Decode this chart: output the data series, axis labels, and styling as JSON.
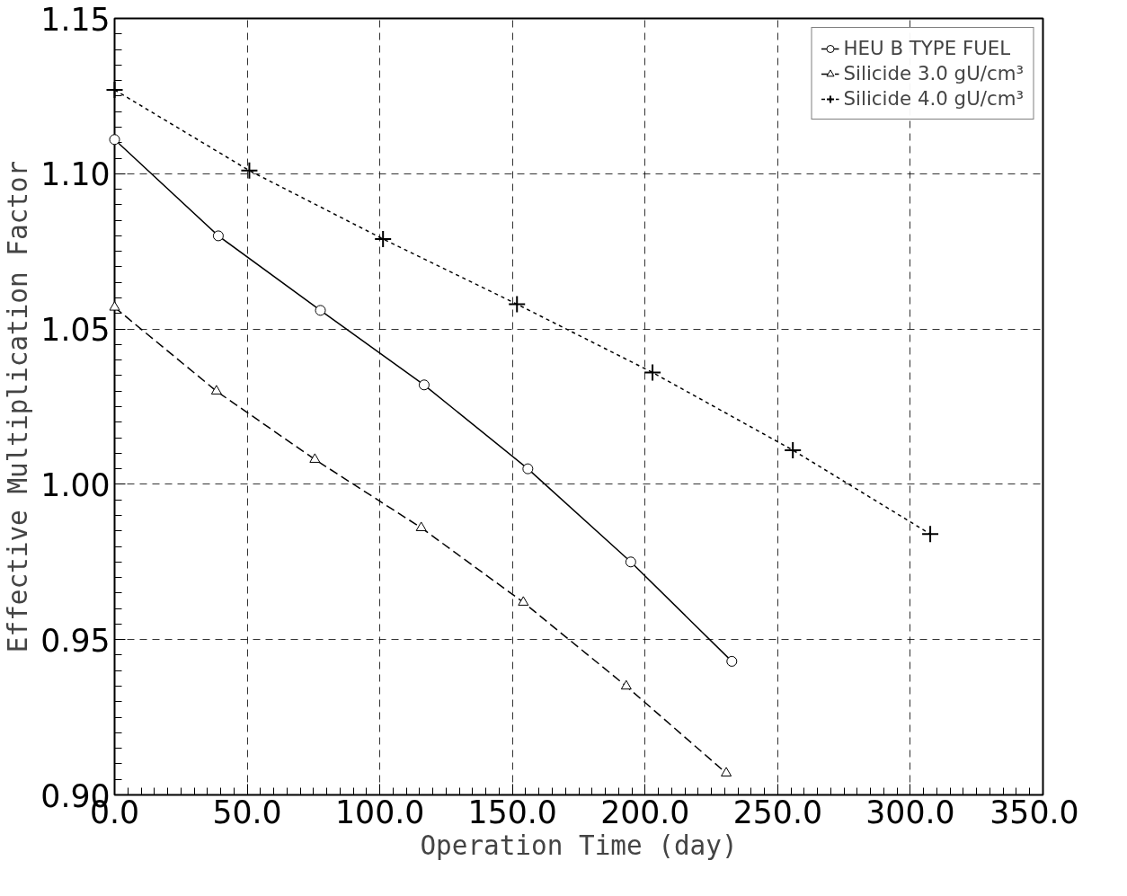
{
  "chart_data": {
    "type": "line",
    "xlabel": "Operation Time (day)",
    "ylabel": "Effective Multiplication Factor",
    "xlim": [
      0,
      350
    ],
    "ylim": [
      0.9,
      1.15
    ],
    "xticks": [
      {
        "value": 0,
        "label": "0.0"
      },
      {
        "value": 50,
        "label": "50.0"
      },
      {
        "value": 100,
        "label": "100.0"
      },
      {
        "value": 150,
        "label": "150.0"
      },
      {
        "value": 200,
        "label": "200.0"
      },
      {
        "value": 250,
        "label": "250.0"
      },
      {
        "value": 300,
        "label": "300.0"
      },
      {
        "value": 350,
        "label": "350.0"
      }
    ],
    "yticks": [
      {
        "value": 0.9,
        "label": "0.90"
      },
      {
        "value": 0.95,
        "label": "0.95"
      },
      {
        "value": 1.0,
        "label": "1.00"
      },
      {
        "value": 1.05,
        "label": "1.05"
      },
      {
        "value": 1.1,
        "label": "1.10"
      },
      {
        "value": 1.15,
        "label": "1.15"
      }
    ],
    "grid": true,
    "legend": "top right",
    "series": [
      {
        "name": "HEU B TYPE FUEL",
        "color": "#000000",
        "marker": "circle",
        "line_style": "solid",
        "x": [
          0,
          39.1,
          77.6,
          116.7,
          155.8,
          194.6,
          232.7
        ],
        "values": [
          1.111,
          1.08,
          1.056,
          1.032,
          1.005,
          0.975,
          0.943
        ]
      },
      {
        "name": "Silicide 3.0 gU/cm³",
        "color": "#000000",
        "marker": "triangle",
        "line_style": "dashed",
        "x": [
          0,
          38.4,
          75.5,
          115.6,
          154.1,
          192.9,
          230.6
        ],
        "values": [
          1.057,
          1.03,
          1.008,
          0.986,
          0.962,
          0.935,
          0.907
        ]
      },
      {
        "name": "Silicide 4.0 gU/cm³",
        "color": "#000000",
        "marker": "cross",
        "line_style": "dotted",
        "x": [
          0,
          50.8,
          101.2,
          151.7,
          202.8,
          255.7,
          307.5
        ],
        "values": [
          1.127,
          1.101,
          1.079,
          1.058,
          1.036,
          1.011,
          0.984
        ]
      }
    ]
  }
}
